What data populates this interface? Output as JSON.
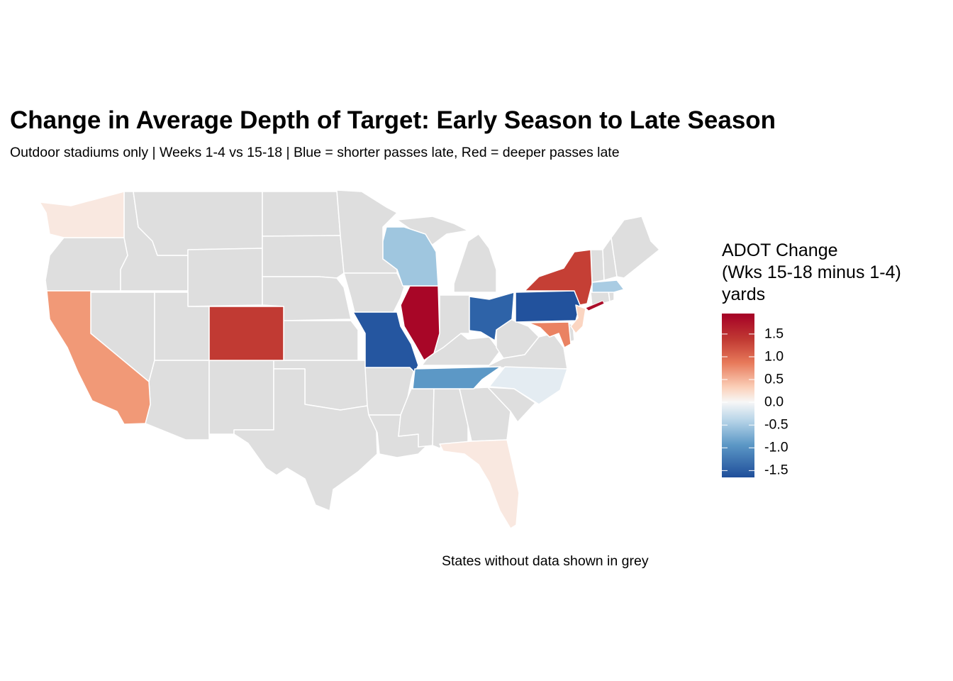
{
  "chart_data": {
    "type": "choropleth",
    "title": "Change in Average Depth of Target: Early Season to Late Season",
    "subtitle": "Outdoor stadiums only | Weeks 1-4 vs 15-18 | Blue = shorter passes late, Red = deeper passes late",
    "caption": "States without data shown in grey",
    "legend": {
      "title_lines": [
        "ADOT Change",
        "(Wks 15-18 minus 1-4)",
        "yards"
      ],
      "range": [
        -1.65,
        1.95
      ],
      "ticks": [
        1.5,
        1.0,
        0.5,
        0.0,
        -0.5,
        -1.0,
        -1.5
      ],
      "tick_labels": [
        "1.5",
        "1.0",
        "0.5",
        "0.0",
        "-0.5",
        "-1.0",
        "-1.5"
      ],
      "placement": "right",
      "low_color": "#1f4e9a",
      "mid_color": "#f7f7f7",
      "high_color": "#a50026"
    },
    "no_data_color": "#dedede",
    "states": [
      {
        "name": "Washington",
        "value": 0.15
      },
      {
        "name": "California",
        "value": 0.75
      },
      {
        "name": "Colorado",
        "value": 1.5
      },
      {
        "name": "Missouri",
        "value": -1.55
      },
      {
        "name": "Illinois",
        "value": 1.9
      },
      {
        "name": "Wisconsin",
        "value": -0.45
      },
      {
        "name": "Ohio",
        "value": -1.4
      },
      {
        "name": "Pennsylvania",
        "value": -1.6
      },
      {
        "name": "New York",
        "value": 1.45
      },
      {
        "name": "Massachusetts",
        "value": -0.4
      },
      {
        "name": "New Jersey",
        "value": 0.35
      },
      {
        "name": "Maryland",
        "value": 0.9
      },
      {
        "name": "Tennessee",
        "value": -0.8
      },
      {
        "name": "North Carolina",
        "value": -0.1
      },
      {
        "name": "Florida",
        "value": 0.15
      }
    ]
  }
}
